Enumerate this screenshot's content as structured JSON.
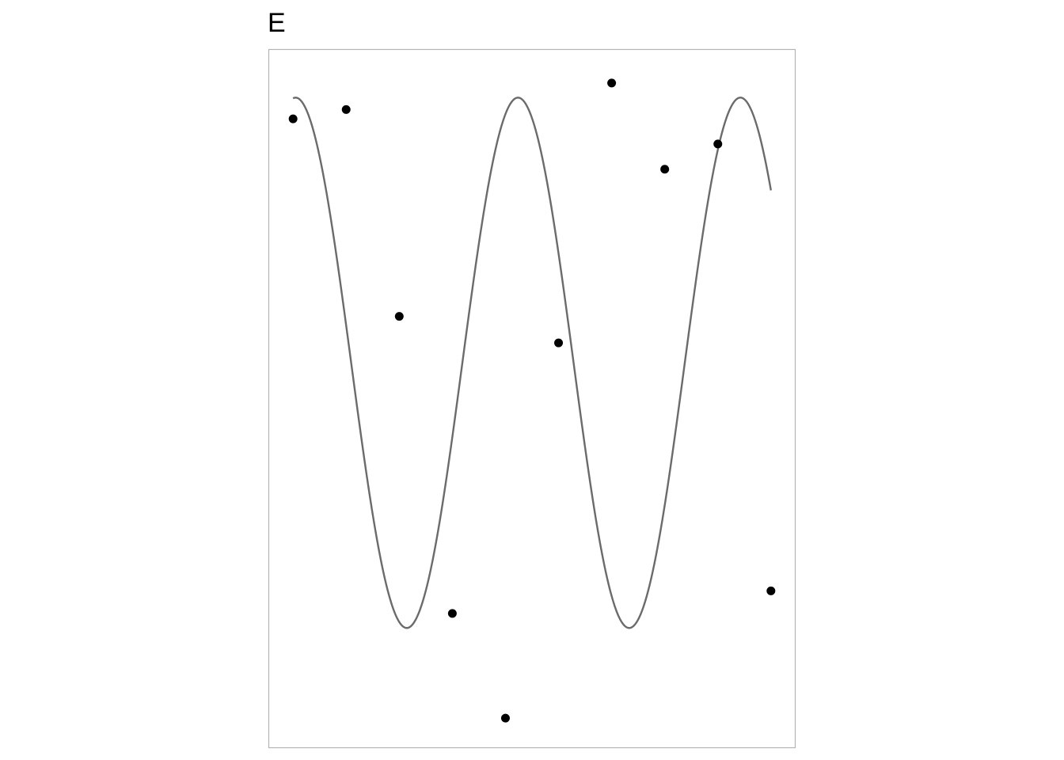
{
  "chart_data": {
    "type": "scatter",
    "title": "E",
    "xlabel": "",
    "ylabel": "",
    "xlim": [
      0.55,
      10.45
    ],
    "ylim": [
      -1.45,
      1.18
    ],
    "grid": false,
    "points": {
      "x": [
        1,
        2,
        3,
        4,
        5,
        6,
        7,
        8,
        9,
        10
      ],
      "y": [
        0.92,
        0.955,
        0.175,
        -0.945,
        -1.34,
        0.075,
        1.055,
        0.73,
        0.825,
        -0.86
      ]
    },
    "curve": {
      "expression": "sin(1.5 * x)",
      "x_range": [
        1,
        10
      ]
    },
    "colors": {
      "points": "#000000",
      "curve": "#6b6b6b",
      "border": "#b3b3b3"
    }
  }
}
